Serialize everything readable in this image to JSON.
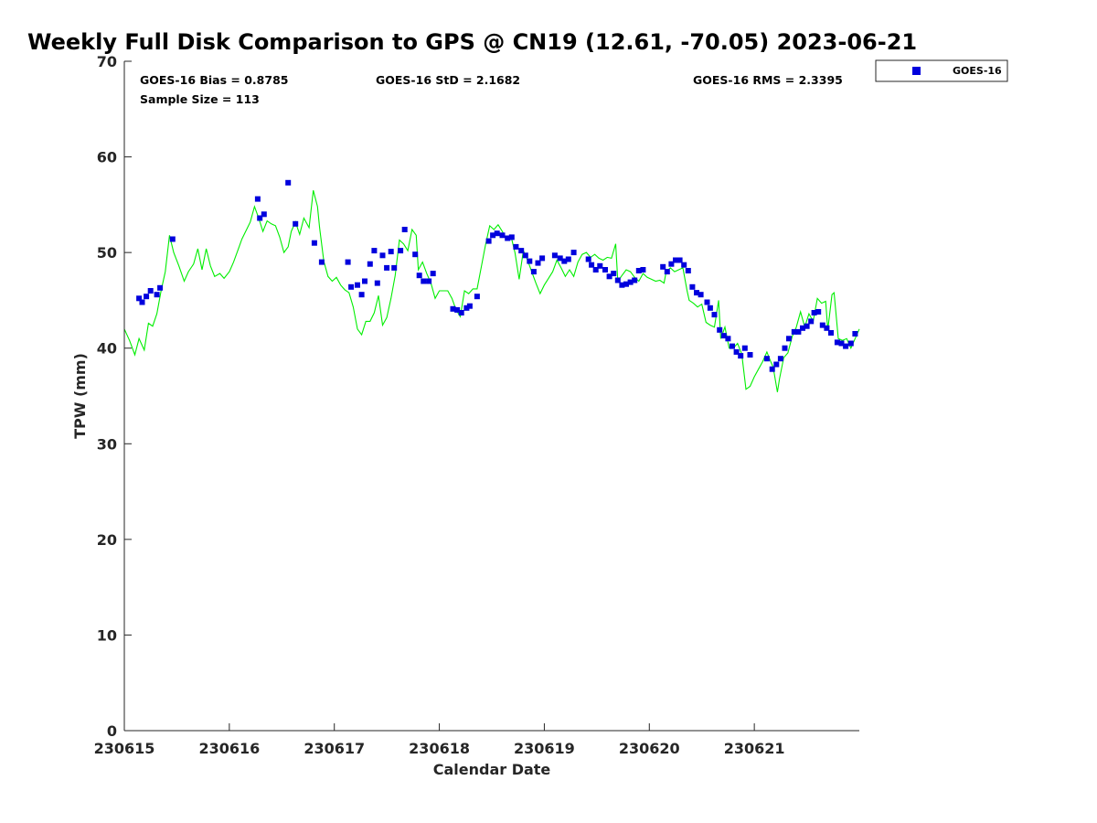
{
  "chart_data": {
    "type": "scatter",
    "title": "Weekly Full Disk Comparison to GPS @ CN19 (12.61, -70.05) 2023-06-21",
    "xlabel": "Calendar Date",
    "ylabel": "TPW (mm)",
    "xlim": [
      0,
      7
    ],
    "ylim": [
      0,
      70
    ],
    "x_ticks": [
      {
        "value": 0,
        "label": "230615"
      },
      {
        "value": 1,
        "label": "230616"
      },
      {
        "value": 2,
        "label": "230617"
      },
      {
        "value": 3,
        "label": "230618"
      },
      {
        "value": 4,
        "label": "230619"
      },
      {
        "value": 5,
        "label": "230620"
      },
      {
        "value": 6,
        "label": "230621"
      }
    ],
    "y_ticks": [
      0,
      10,
      20,
      30,
      40,
      50,
      60,
      70
    ],
    "grid": false,
    "legend_position": "top-right",
    "stats": {
      "bias": "GOES-16 Bias = 0.8785",
      "std": "GOES-16 StD = 2.1682",
      "rms": "GOES-16 RMS = 2.3395",
      "sample": "Sample Size = 113"
    },
    "series": [
      {
        "name": "GOES-16",
        "kind": "scatter",
        "marker": "square",
        "color": "#0000dd",
        "points": [
          [
            0.14,
            45.2
          ],
          [
            0.17,
            44.8
          ],
          [
            0.21,
            45.4
          ],
          [
            0.25,
            46.0
          ],
          [
            0.31,
            45.6
          ],
          [
            0.34,
            46.3
          ],
          [
            0.46,
            51.4
          ],
          [
            1.27,
            55.6
          ],
          [
            1.29,
            53.6
          ],
          [
            1.33,
            54.0
          ],
          [
            1.56,
            57.3
          ],
          [
            1.63,
            53.0
          ],
          [
            1.81,
            51.0
          ],
          [
            1.88,
            49.0
          ],
          [
            2.13,
            49.0
          ],
          [
            2.16,
            46.4
          ],
          [
            2.22,
            46.6
          ],
          [
            2.26,
            45.6
          ],
          [
            2.29,
            47.0
          ],
          [
            2.34,
            48.8
          ],
          [
            2.38,
            50.2
          ],
          [
            2.41,
            46.8
          ],
          [
            2.46,
            49.7
          ],
          [
            2.5,
            48.4
          ],
          [
            2.54,
            50.1
          ],
          [
            2.57,
            48.4
          ],
          [
            2.63,
            50.2
          ],
          [
            2.67,
            52.4
          ],
          [
            2.77,
            49.8
          ],
          [
            2.81,
            47.6
          ],
          [
            2.85,
            47.0
          ],
          [
            2.9,
            47.0
          ],
          [
            2.94,
            47.8
          ],
          [
            3.13,
            44.1
          ],
          [
            3.17,
            44.0
          ],
          [
            3.21,
            43.7
          ],
          [
            3.26,
            44.2
          ],
          [
            3.29,
            44.4
          ],
          [
            3.36,
            45.4
          ],
          [
            3.47,
            51.2
          ],
          [
            3.51,
            51.8
          ],
          [
            3.55,
            52.0
          ],
          [
            3.6,
            51.8
          ],
          [
            3.65,
            51.5
          ],
          [
            3.69,
            51.6
          ],
          [
            3.73,
            50.6
          ],
          [
            3.78,
            50.2
          ],
          [
            3.82,
            49.7
          ],
          [
            3.86,
            49.1
          ],
          [
            3.9,
            48.0
          ],
          [
            3.94,
            48.9
          ],
          [
            3.98,
            49.4
          ],
          [
            4.1,
            49.7
          ],
          [
            4.15,
            49.4
          ],
          [
            4.19,
            49.1
          ],
          [
            4.23,
            49.3
          ],
          [
            4.28,
            50.0
          ],
          [
            4.42,
            49.3
          ],
          [
            4.45,
            48.7
          ],
          [
            4.49,
            48.2
          ],
          [
            4.53,
            48.6
          ],
          [
            4.58,
            48.2
          ],
          [
            4.62,
            47.5
          ],
          [
            4.66,
            47.8
          ],
          [
            4.7,
            47.1
          ],
          [
            4.74,
            46.6
          ],
          [
            4.78,
            46.7
          ],
          [
            4.82,
            46.9
          ],
          [
            4.86,
            47.1
          ],
          [
            4.9,
            48.1
          ],
          [
            4.94,
            48.2
          ],
          [
            5.13,
            48.5
          ],
          [
            5.17,
            48.0
          ],
          [
            5.21,
            48.8
          ],
          [
            5.25,
            49.2
          ],
          [
            5.29,
            49.2
          ],
          [
            5.33,
            48.7
          ],
          [
            5.37,
            48.1
          ],
          [
            5.41,
            46.4
          ],
          [
            5.45,
            45.8
          ],
          [
            5.49,
            45.6
          ],
          [
            5.55,
            44.8
          ],
          [
            5.58,
            44.2
          ],
          [
            5.62,
            43.5
          ],
          [
            5.67,
            41.9
          ],
          [
            5.71,
            41.3
          ],
          [
            5.75,
            41.0
          ],
          [
            5.79,
            40.2
          ],
          [
            5.83,
            39.6
          ],
          [
            5.87,
            39.2
          ],
          [
            5.91,
            40.0
          ],
          [
            5.96,
            39.3
          ],
          [
            6.12,
            38.9
          ],
          [
            6.17,
            37.8
          ],
          [
            6.21,
            38.3
          ],
          [
            6.25,
            38.9
          ],
          [
            6.29,
            40.0
          ],
          [
            6.33,
            41.0
          ],
          [
            6.38,
            41.7
          ],
          [
            6.42,
            41.7
          ],
          [
            6.46,
            42.1
          ],
          [
            6.5,
            42.3
          ],
          [
            6.54,
            42.8
          ],
          [
            6.57,
            43.7
          ],
          [
            6.61,
            43.8
          ],
          [
            6.65,
            42.4
          ],
          [
            6.69,
            42.1
          ],
          [
            6.73,
            41.6
          ],
          [
            6.79,
            40.6
          ],
          [
            6.83,
            40.5
          ],
          [
            6.87,
            40.2
          ],
          [
            6.92,
            40.5
          ],
          [
            6.96,
            41.5
          ]
        ]
      },
      {
        "name": "GPS",
        "kind": "line",
        "color": "#00ee00",
        "points": [
          [
            0.0,
            42.0
          ],
          [
            0.05,
            40.8
          ],
          [
            0.1,
            39.3
          ],
          [
            0.14,
            41.0
          ],
          [
            0.19,
            39.8
          ],
          [
            0.23,
            42.6
          ],
          [
            0.27,
            42.3
          ],
          [
            0.31,
            43.6
          ],
          [
            0.35,
            46.0
          ],
          [
            0.39,
            48.0
          ],
          [
            0.43,
            51.8
          ],
          [
            0.47,
            50.0
          ],
          [
            0.52,
            48.6
          ],
          [
            0.57,
            47.0
          ],
          [
            0.61,
            48.0
          ],
          [
            0.66,
            48.8
          ],
          [
            0.7,
            50.4
          ],
          [
            0.74,
            48.2
          ],
          [
            0.78,
            50.4
          ],
          [
            0.82,
            48.6
          ],
          [
            0.86,
            47.5
          ],
          [
            0.91,
            47.8
          ],
          [
            0.95,
            47.3
          ],
          [
            1.0,
            48.0
          ],
          [
            1.04,
            49.0
          ],
          [
            1.09,
            50.5
          ],
          [
            1.12,
            51.4
          ],
          [
            1.16,
            52.3
          ],
          [
            1.2,
            53.2
          ],
          [
            1.24,
            54.8
          ],
          [
            1.28,
            53.6
          ],
          [
            1.32,
            52.2
          ],
          [
            1.36,
            53.3
          ],
          [
            1.4,
            53.0
          ],
          [
            1.44,
            52.8
          ],
          [
            1.48,
            51.6
          ],
          [
            1.52,
            50.0
          ],
          [
            1.56,
            50.6
          ],
          [
            1.59,
            52.2
          ],
          [
            1.63,
            53.2
          ],
          [
            1.67,
            51.9
          ],
          [
            1.71,
            53.6
          ],
          [
            1.76,
            52.6
          ],
          [
            1.8,
            56.5
          ],
          [
            1.84,
            54.8
          ],
          [
            1.86,
            52.6
          ],
          [
            1.9,
            49.1
          ],
          [
            1.94,
            47.5
          ],
          [
            1.98,
            47.0
          ],
          [
            2.02,
            47.4
          ],
          [
            2.06,
            46.6
          ],
          [
            2.1,
            46.1
          ],
          [
            2.14,
            45.8
          ],
          [
            2.18,
            44.3
          ],
          [
            2.22,
            42.0
          ],
          [
            2.26,
            41.4
          ],
          [
            2.3,
            42.8
          ],
          [
            2.34,
            42.8
          ],
          [
            2.38,
            43.7
          ],
          [
            2.42,
            45.5
          ],
          [
            2.46,
            42.4
          ],
          [
            2.5,
            43.2
          ],
          [
            2.54,
            45.2
          ],
          [
            2.58,
            47.6
          ],
          [
            2.62,
            51.3
          ],
          [
            2.66,
            50.9
          ],
          [
            2.7,
            50.2
          ],
          [
            2.74,
            52.4
          ],
          [
            2.78,
            51.8
          ],
          [
            2.8,
            48.2
          ],
          [
            2.84,
            49.0
          ],
          [
            2.88,
            47.8
          ],
          [
            2.92,
            46.8
          ],
          [
            2.96,
            45.2
          ],
          [
            3.0,
            46.0
          ],
          [
            3.04,
            46.0
          ],
          [
            3.08,
            46.0
          ],
          [
            3.12,
            45.2
          ],
          [
            3.16,
            44.0
          ],
          [
            3.2,
            43.3
          ],
          [
            3.24,
            46.0
          ],
          [
            3.28,
            45.7
          ],
          [
            3.32,
            46.2
          ],
          [
            3.36,
            46.2
          ],
          [
            3.4,
            48.5
          ],
          [
            3.44,
            50.8
          ],
          [
            3.48,
            52.8
          ],
          [
            3.52,
            52.4
          ],
          [
            3.56,
            52.9
          ],
          [
            3.6,
            52.2
          ],
          [
            3.64,
            51.4
          ],
          [
            3.68,
            51.8
          ],
          [
            3.72,
            50.0
          ],
          [
            3.76,
            47.2
          ],
          [
            3.8,
            50.2
          ],
          [
            3.84,
            49.2
          ],
          [
            3.88,
            48.0
          ],
          [
            3.92,
            46.8
          ],
          [
            3.96,
            45.7
          ],
          [
            4.0,
            46.6
          ],
          [
            4.04,
            47.3
          ],
          [
            4.08,
            48.0
          ],
          [
            4.12,
            49.2
          ],
          [
            4.16,
            48.4
          ],
          [
            4.2,
            47.5
          ],
          [
            4.24,
            48.2
          ],
          [
            4.28,
            47.5
          ],
          [
            4.32,
            49.0
          ],
          [
            4.36,
            49.8
          ],
          [
            4.4,
            50.0
          ],
          [
            4.44,
            49.5
          ],
          [
            4.48,
            49.8
          ],
          [
            4.52,
            49.4
          ],
          [
            4.56,
            49.2
          ],
          [
            4.6,
            49.5
          ],
          [
            4.64,
            49.4
          ],
          [
            4.68,
            50.9
          ],
          [
            4.7,
            47.0
          ],
          [
            4.74,
            47.6
          ],
          [
            4.78,
            48.2
          ],
          [
            4.82,
            48.0
          ],
          [
            4.86,
            47.4
          ],
          [
            4.9,
            47.0
          ],
          [
            4.94,
            47.8
          ],
          [
            4.98,
            47.4
          ],
          [
            5.02,
            47.2
          ],
          [
            5.06,
            47.0
          ],
          [
            5.1,
            47.1
          ],
          [
            5.14,
            46.8
          ],
          [
            5.16,
            48.0
          ],
          [
            5.2,
            48.4
          ],
          [
            5.24,
            48.0
          ],
          [
            5.28,
            48.2
          ],
          [
            5.32,
            48.4
          ],
          [
            5.36,
            46.0
          ],
          [
            5.38,
            45.0
          ],
          [
            5.42,
            44.7
          ],
          [
            5.46,
            44.3
          ],
          [
            5.5,
            44.6
          ],
          [
            5.54,
            42.7
          ],
          [
            5.58,
            42.4
          ],
          [
            5.62,
            42.2
          ],
          [
            5.66,
            45.0
          ],
          [
            5.68,
            41.0
          ],
          [
            5.72,
            42.2
          ],
          [
            5.76,
            40.0
          ],
          [
            5.8,
            40.0
          ],
          [
            5.84,
            40.5
          ],
          [
            5.88,
            39.4
          ],
          [
            5.92,
            35.7
          ],
          [
            5.96,
            36.0
          ],
          [
            6.0,
            37.0
          ],
          [
            6.04,
            37.8
          ],
          [
            6.08,
            38.6
          ],
          [
            6.12,
            39.6
          ],
          [
            6.16,
            38.5
          ],
          [
            6.18,
            38.0
          ],
          [
            6.22,
            35.4
          ],
          [
            6.24,
            36.8
          ],
          [
            6.28,
            39.0
          ],
          [
            6.32,
            39.5
          ],
          [
            6.36,
            41.2
          ],
          [
            6.4,
            42.2
          ],
          [
            6.44,
            43.8
          ],
          [
            6.48,
            42.2
          ],
          [
            6.52,
            43.6
          ],
          [
            6.56,
            42.8
          ],
          [
            6.6,
            45.2
          ],
          [
            6.64,
            44.7
          ],
          [
            6.68,
            44.9
          ],
          [
            6.7,
            41.9
          ],
          [
            6.74,
            45.6
          ],
          [
            6.76,
            45.8
          ],
          [
            6.8,
            41.0
          ],
          [
            6.84,
            40.8
          ],
          [
            6.88,
            41.0
          ],
          [
            6.92,
            40.0
          ],
          [
            6.96,
            41.0
          ],
          [
            7.0,
            42.0
          ]
        ]
      }
    ]
  }
}
